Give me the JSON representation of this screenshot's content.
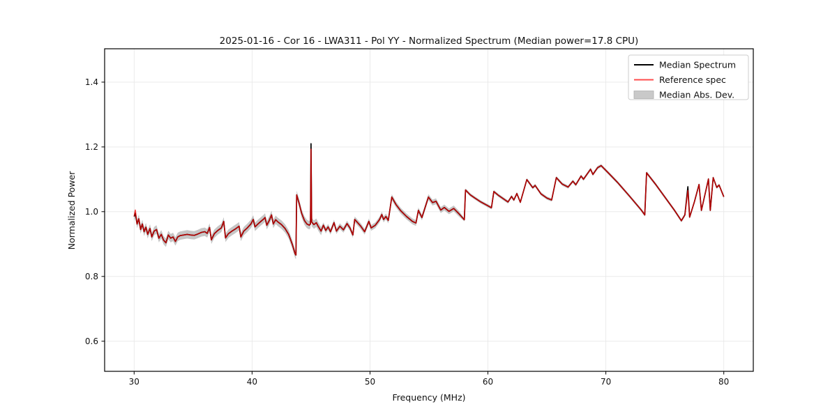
{
  "chart_data": {
    "type": "line",
    "title": "2025-01-16 - Cor 16 - LWA311 - Pol YY - Normalized Spectrum (Median power=17.8 CPU)",
    "xlabel": "Frequency (MHz)",
    "ylabel": "Normalized Power",
    "xlim": [
      27.5,
      82.5
    ],
    "ylim": [
      0.507,
      1.503
    ],
    "xticks": [
      30,
      40,
      50,
      60,
      70,
      80
    ],
    "yticks": [
      0.6,
      0.8,
      1.0,
      1.2,
      1.4
    ],
    "grid": true,
    "legend_position": "upper right",
    "x": [
      30.0,
      30.1,
      30.25,
      30.4,
      30.55,
      30.7,
      30.85,
      31.0,
      31.15,
      31.35,
      31.5,
      31.7,
      31.9,
      32.1,
      32.3,
      32.5,
      32.7,
      32.9,
      33.1,
      33.3,
      33.5,
      33.7,
      33.9,
      34.2,
      34.5,
      34.8,
      35.1,
      35.4,
      35.7,
      36.0,
      36.2,
      36.4,
      36.55,
      36.8,
      37.1,
      37.4,
      37.6,
      37.75,
      38.0,
      38.3,
      38.6,
      38.9,
      39.05,
      39.3,
      39.6,
      39.9,
      40.1,
      40.25,
      40.5,
      40.75,
      41.0,
      41.1,
      41.25,
      41.45,
      41.65,
      41.8,
      42.0,
      42.2,
      42.5,
      42.8,
      43.1,
      43.4,
      43.65,
      43.72,
      43.78,
      44.0,
      44.2,
      44.45,
      44.65,
      44.85,
      44.95,
      45.0,
      45.05,
      45.25,
      45.45,
      45.6,
      45.85,
      46.05,
      46.25,
      46.45,
      46.65,
      46.95,
      47.15,
      47.45,
      47.75,
      48.05,
      48.3,
      48.55,
      48.7,
      48.9,
      49.2,
      49.55,
      49.9,
      50.1,
      50.45,
      50.8,
      51.0,
      51.15,
      51.35,
      51.55,
      51.85,
      52.2,
      52.6,
      53.1,
      53.6,
      53.9,
      54.1,
      54.4,
      54.95,
      55.3,
      55.6,
      56.0,
      56.3,
      56.7,
      57.1,
      57.5,
      58.0,
      58.1,
      58.5,
      58.9,
      59.4,
      59.9,
      60.3,
      60.5,
      60.9,
      61.3,
      61.7,
      62.0,
      62.2,
      62.45,
      62.75,
      63.3,
      63.8,
      64.0,
      64.5,
      65.0,
      65.4,
      65.8,
      66.3,
      66.8,
      67.2,
      67.45,
      67.9,
      68.1,
      68.7,
      68.9,
      69.3,
      69.6,
      70.2,
      71.0,
      72.0,
      73.0,
      73.3,
      73.45,
      74.2,
      75.0,
      75.8,
      76.4,
      76.7,
      76.95,
      77.1,
      77.5,
      77.9,
      78.1,
      78.7,
      78.85,
      79.1,
      79.4,
      79.6,
      80.0
    ],
    "series": [
      {
        "name": "Median Spectrum",
        "color": "#000000",
        "y": [
          0.985,
          0.995,
          0.962,
          0.978,
          0.945,
          0.962,
          0.938,
          0.952,
          0.93,
          0.948,
          0.922,
          0.94,
          0.945,
          0.918,
          0.93,
          0.912,
          0.904,
          0.928,
          0.918,
          0.922,
          0.908,
          0.922,
          0.926,
          0.928,
          0.93,
          0.928,
          0.927,
          0.931,
          0.936,
          0.938,
          0.933,
          0.951,
          0.913,
          0.932,
          0.942,
          0.95,
          0.97,
          0.919,
          0.932,
          0.94,
          0.947,
          0.955,
          0.922,
          0.94,
          0.95,
          0.962,
          0.976,
          0.953,
          0.962,
          0.97,
          0.978,
          0.982,
          0.958,
          0.972,
          0.99,
          0.962,
          0.975,
          0.968,
          0.96,
          0.948,
          0.93,
          0.9,
          0.87,
          0.866,
          1.052,
          1.025,
          0.995,
          0.972,
          0.962,
          0.958,
          0.962,
          1.21,
          0.968,
          0.96,
          0.966,
          0.955,
          0.94,
          0.958,
          0.942,
          0.953,
          0.938,
          0.966,
          0.94,
          0.955,
          0.944,
          0.963,
          0.95,
          0.928,
          0.976,
          0.968,
          0.956,
          0.938,
          0.97,
          0.95,
          0.958,
          0.975,
          0.991,
          0.976,
          0.985,
          0.973,
          1.045,
          1.022,
          1.003,
          0.985,
          0.97,
          0.965,
          1.004,
          0.982,
          1.045,
          1.028,
          1.032,
          1.005,
          1.013,
          1.001,
          1.01,
          0.995,
          0.975,
          1.067,
          1.052,
          1.042,
          1.03,
          1.02,
          1.012,
          1.062,
          1.05,
          1.04,
          1.03,
          1.047,
          1.036,
          1.056,
          1.029,
          1.099,
          1.074,
          1.081,
          1.055,
          1.042,
          1.036,
          1.105,
          1.085,
          1.076,
          1.094,
          1.083,
          1.11,
          1.1,
          1.131,
          1.115,
          1.136,
          1.142,
          1.12,
          1.09,
          1.048,
          1.005,
          0.99,
          1.12,
          1.085,
          1.045,
          1.005,
          0.972,
          0.99,
          1.077,
          0.983,
          1.03,
          1.084,
          1.004,
          1.101,
          1.004,
          1.105,
          1.075,
          1.082,
          1.046
        ]
      },
      {
        "name": "Reference spec",
        "color": "rgba(255,0,0,0.7)",
        "y": [
          0.985,
          1.005,
          0.962,
          0.978,
          0.945,
          0.962,
          0.938,
          0.952,
          0.93,
          0.948,
          0.922,
          0.94,
          0.945,
          0.918,
          0.93,
          0.912,
          0.904,
          0.928,
          0.918,
          0.922,
          0.908,
          0.922,
          0.926,
          0.928,
          0.93,
          0.928,
          0.927,
          0.931,
          0.936,
          0.938,
          0.933,
          0.951,
          0.913,
          0.932,
          0.942,
          0.95,
          0.97,
          0.919,
          0.932,
          0.94,
          0.947,
          0.955,
          0.922,
          0.94,
          0.95,
          0.962,
          0.976,
          0.953,
          0.962,
          0.97,
          0.978,
          0.982,
          0.958,
          0.972,
          0.99,
          0.962,
          0.975,
          0.968,
          0.96,
          0.948,
          0.93,
          0.9,
          0.87,
          0.866,
          1.052,
          1.025,
          0.995,
          0.972,
          0.962,
          0.958,
          0.962,
          1.193,
          0.968,
          0.96,
          0.966,
          0.955,
          0.94,
          0.958,
          0.942,
          0.953,
          0.938,
          0.966,
          0.94,
          0.955,
          0.944,
          0.963,
          0.95,
          0.928,
          0.976,
          0.968,
          0.956,
          0.938,
          0.97,
          0.95,
          0.958,
          0.975,
          0.991,
          0.976,
          0.985,
          0.973,
          1.045,
          1.022,
          1.003,
          0.985,
          0.97,
          0.965,
          1.004,
          0.982,
          1.045,
          1.028,
          1.032,
          1.005,
          1.013,
          1.001,
          1.01,
          0.995,
          0.975,
          1.067,
          1.052,
          1.042,
          1.03,
          1.02,
          1.012,
          1.062,
          1.05,
          1.04,
          1.03,
          1.047,
          1.036,
          1.056,
          1.029,
          1.099,
          1.074,
          1.081,
          1.055,
          1.042,
          1.036,
          1.105,
          1.085,
          1.076,
          1.094,
          1.083,
          1.11,
          1.1,
          1.131,
          1.115,
          1.136,
          1.142,
          1.12,
          1.09,
          1.048,
          1.005,
          0.99,
          1.12,
          1.085,
          1.045,
          1.005,
          0.972,
          0.99,
          1.065,
          0.983,
          1.03,
          1.084,
          1.004,
          1.101,
          1.004,
          1.105,
          1.075,
          1.082,
          1.046
        ]
      },
      {
        "name": "Median Abs. Dev.",
        "type": "band",
        "color": "rgba(128,128,128,0.45)",
        "halfwidth_by_freq": [
          [
            27.5,
            0.013
          ],
          [
            46.0,
            0.009
          ],
          [
            58.0,
            0.005
          ]
        ]
      }
    ]
  },
  "legend": {
    "items": [
      {
        "label": "Median Spectrum",
        "swatch": "line",
        "color": "#000000"
      },
      {
        "label": "Reference spec",
        "swatch": "line",
        "color": "rgba(255,0,0,0.7)"
      },
      {
        "label": "Median Abs. Dev.",
        "swatch": "patch",
        "color": "#c9c9c9",
        "edge": "#b0b0b0"
      }
    ]
  }
}
